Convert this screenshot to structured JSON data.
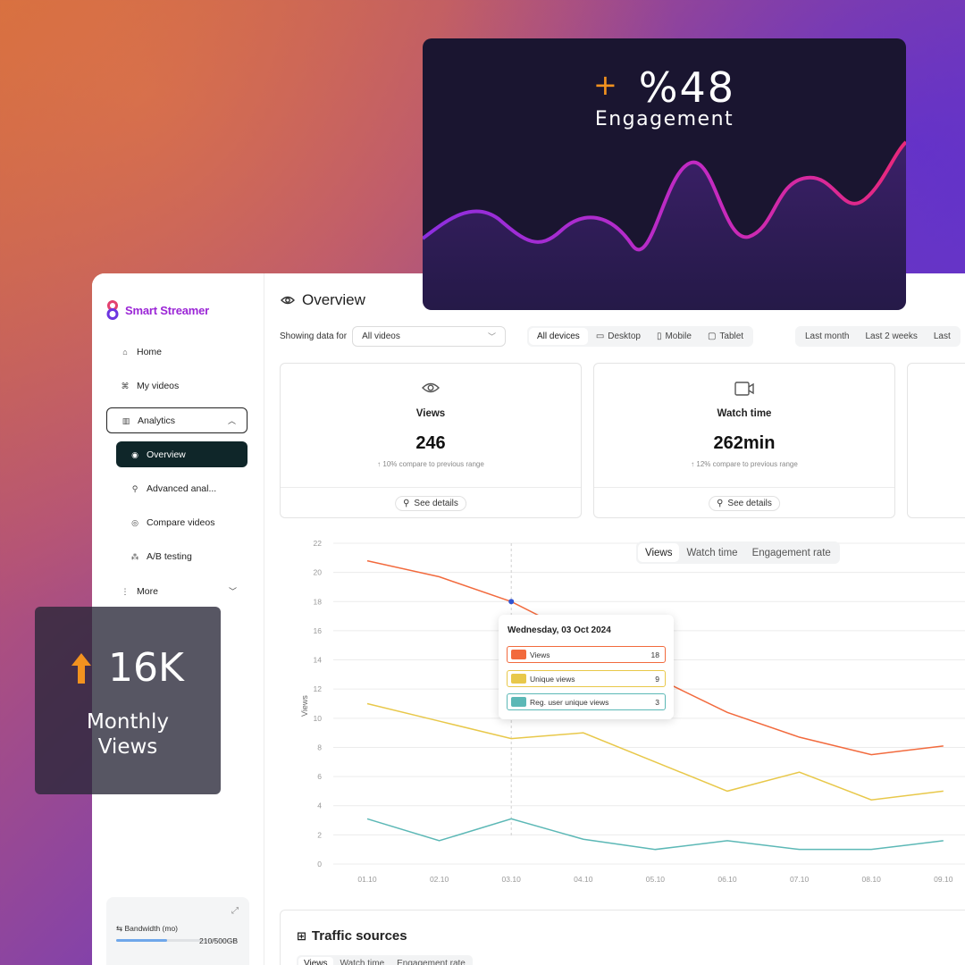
{
  "app": {
    "name": "Smart Streamer",
    "brand_color": "#9b26d6"
  },
  "sidebar": {
    "items": [
      {
        "label": "Home",
        "icon": "home-icon"
      },
      {
        "label": "My videos",
        "icon": "video-icon"
      },
      {
        "label": "Analytics",
        "icon": "analytics-icon",
        "expanded": true
      },
      {
        "label": "Overview",
        "icon": "eye-icon",
        "active": true
      },
      {
        "label": "Advanced anal...",
        "icon": "advanced-icon"
      },
      {
        "label": "Compare videos",
        "icon": "compare-icon"
      },
      {
        "label": "A/B testing",
        "icon": "ab-icon"
      },
      {
        "label": "More",
        "icon": "more-icon"
      }
    ],
    "bandwidth": {
      "label": "Bandwidth (mo)",
      "value": "210/500GB",
      "fraction": 0.42
    }
  },
  "page": {
    "title": "Overview"
  },
  "filters": {
    "showing_label": "Showing data for",
    "video_select": "All videos",
    "devices": [
      "All devices",
      "Desktop",
      "Mobile",
      "Tablet"
    ],
    "selected_device": "All devices",
    "ranges": [
      "Last month",
      "Last 2 weeks",
      "Last"
    ]
  },
  "cards": [
    {
      "label": "Views",
      "value": "246",
      "compare": "10% compare to previous range",
      "button": "See details",
      "icon": "eye-icon"
    },
    {
      "label": "Watch time",
      "value": "262min",
      "compare": "12% compare to previous range",
      "button": "See details",
      "icon": "video-camera-icon"
    }
  ],
  "chart_tabs": [
    "Views",
    "Watch time",
    "Engagement rate"
  ],
  "chart_data": {
    "type": "line",
    "x": [
      "01.10",
      "02.10",
      "03.10",
      "04.10",
      "05.10",
      "06.10",
      "07.10",
      "08.10",
      "09.10"
    ],
    "ylabel": "Views",
    "ylim": [
      0,
      22
    ],
    "y_ticks": [
      0,
      2,
      4,
      6,
      8,
      10,
      12,
      14,
      16,
      18,
      20,
      22
    ],
    "grid": true,
    "series": [
      {
        "name": "Views",
        "color": "#f26a3d",
        "values": [
          20.8,
          19.7,
          18,
          15.5,
          12.8,
          10.4,
          8.7,
          7.5,
          8.1
        ]
      },
      {
        "name": "Unique views",
        "color": "#e8c84a",
        "values": [
          11,
          9.8,
          8.6,
          9,
          7,
          5,
          6.3,
          4.4,
          5
        ]
      },
      {
        "name": "Reg. user unique views",
        "color": "#5cb8b6",
        "values": [
          3.1,
          1.6,
          3.1,
          1.7,
          1,
          1.6,
          1,
          1,
          1.6
        ]
      }
    ]
  },
  "tooltip": {
    "date": "Wednesday, 03 Oct 2024",
    "rows": [
      {
        "label": "Views",
        "value": "18",
        "color": "#f26a3d"
      },
      {
        "label": "Unique views",
        "value": "9",
        "color": "#e8c84a"
      },
      {
        "label": "Reg. user unique views",
        "value": "3",
        "color": "#5cb8b6"
      }
    ]
  },
  "traffic": {
    "title": "Traffic sources",
    "tabs": [
      "Views",
      "Watch time",
      "Engagement rate"
    ]
  },
  "engagement_card": {
    "value": "%48",
    "label": "Engagement"
  },
  "monthly_card": {
    "value": "16K",
    "label": "Monthly Views"
  }
}
